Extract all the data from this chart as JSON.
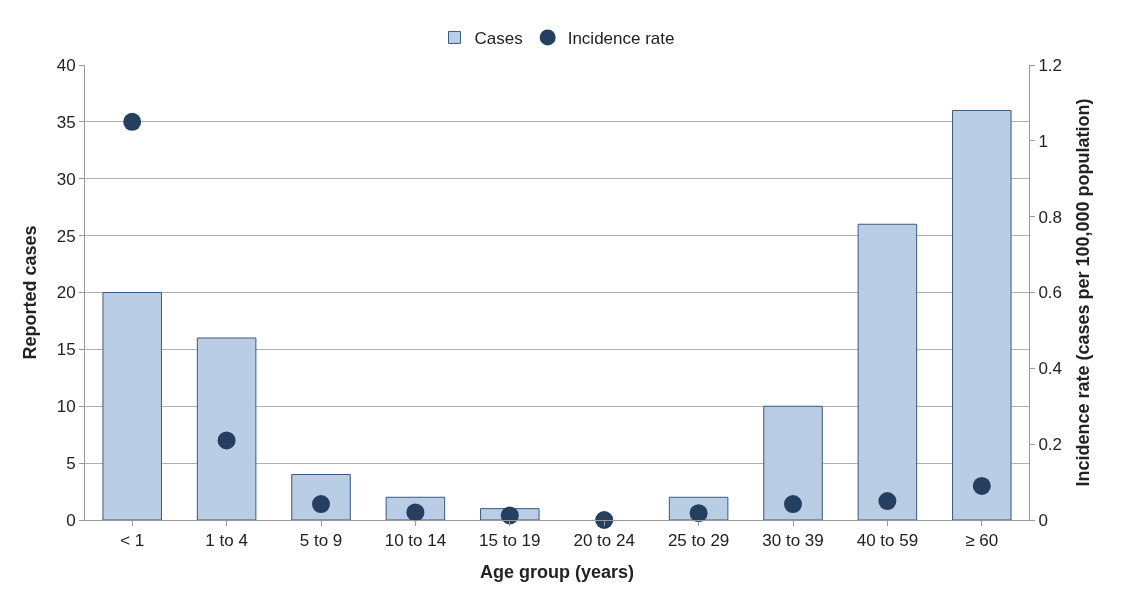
{
  "chart_data": {
    "type": "bar",
    "xlabel": "Age group (years)",
    "ylabel": "Reported cases",
    "y2label": "Incidence rate (cases per 100,000 population)",
    "categories": [
      "< 1",
      "1 to 4",
      "5 to 9",
      "10 to 14",
      "15 to 19",
      "20 to 24",
      "25 to 29",
      "30 to 39",
      "40 to 59",
      "≥ 60"
    ],
    "series": [
      {
        "name": "Cases",
        "color": "#b9cde5",
        "values": [
          20,
          16,
          4,
          2,
          1,
          0,
          2,
          10,
          26,
          36
        ]
      },
      {
        "name": "Incidence rate",
        "type": "scatter",
        "axis": "y2",
        "color": "#243f60",
        "marker": "circle",
        "values": [
          1.05,
          0.21,
          0.042,
          0.02,
          0.012,
          0,
          0.018,
          0.042,
          0.05,
          0.09
        ]
      }
    ],
    "ylim": [
      0,
      40
    ],
    "yticks": [
      0,
      5,
      10,
      15,
      20,
      25,
      30,
      35,
      40
    ],
    "y2lim": [
      0,
      1.2
    ],
    "y2ticks": [
      0,
      0.2,
      0.4,
      0.6,
      0.8,
      1,
      1.2
    ],
    "grid": "y",
    "legend": "top"
  }
}
